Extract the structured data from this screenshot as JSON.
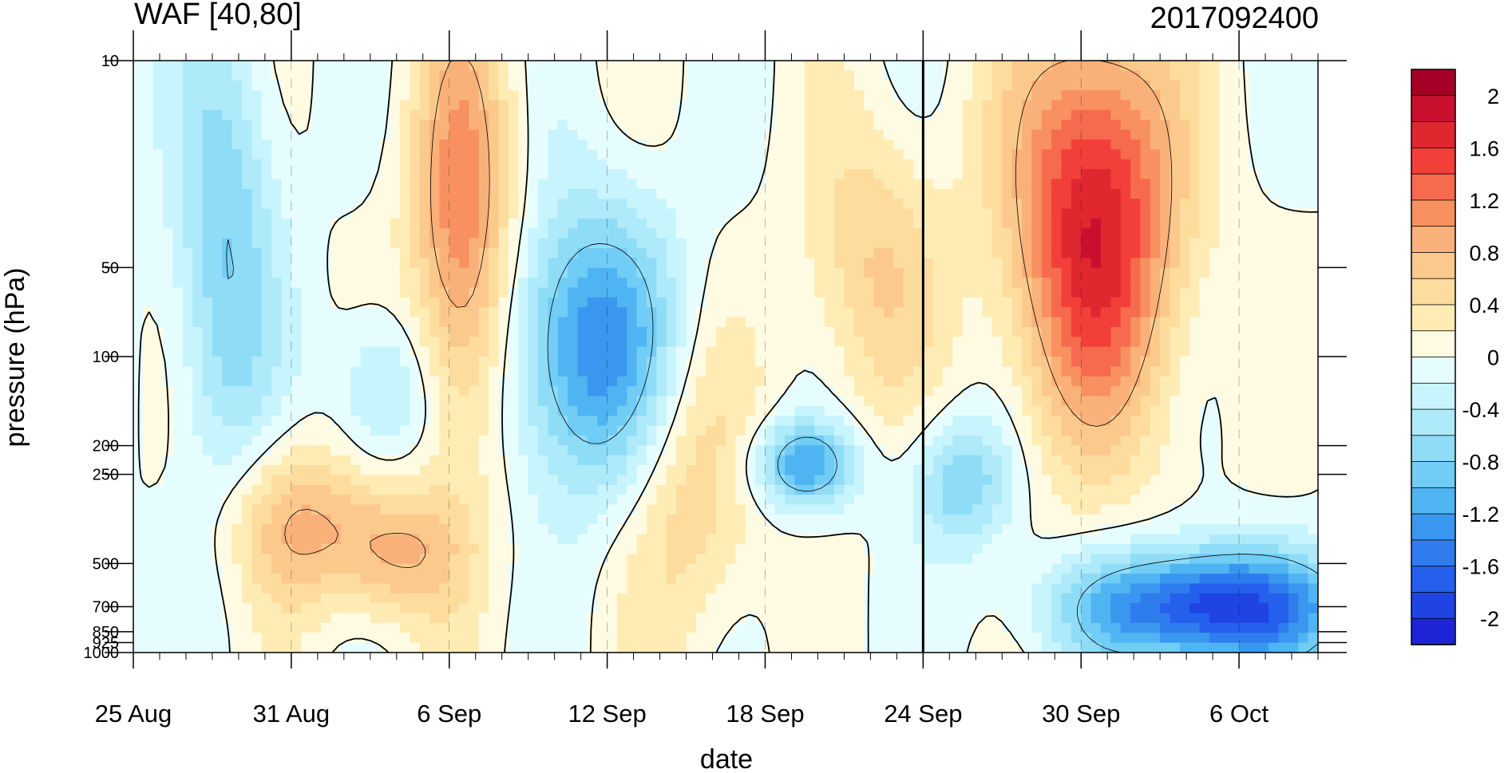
{
  "chart_data": {
    "type": "heatmap",
    "title": "WAF [40,80]",
    "subtitle": "2017092400",
    "xlabel": "date",
    "ylabel": "pressure (hPa)",
    "x_ticks": [
      "25 Aug",
      "31 Aug",
      "6 Sep",
      "12 Sep",
      "18 Sep",
      "24 Sep",
      "30 Sep",
      "6 Oct"
    ],
    "x_range": [
      "25 Aug",
      "9 Oct"
    ],
    "y_scale": "log",
    "y_reversed": true,
    "y_ticks": [
      "10",
      "50",
      "100",
      "200",
      "250",
      "500",
      "700",
      "850",
      "925",
      "1000"
    ],
    "y_range": [
      10,
      1000
    ],
    "colorbar": {
      "labels": [
        "2",
        "1.6",
        "1.2",
        "0.8",
        "0.4",
        "0",
        "-0.4",
        "-0.8",
        "-1.2",
        "-1.6",
        "-2"
      ],
      "levels_top_to_bottom": [
        2.2,
        2.0,
        1.8,
        1.6,
        1.4,
        1.2,
        1.0,
        0.8,
        0.6,
        0.4,
        0.2,
        0,
        -0.2,
        -0.4,
        -0.6,
        -0.8,
        -1.0,
        -1.2,
        -1.4,
        -1.6,
        -1.8,
        -2.0,
        -2.2
      ],
      "colors_top_to_bottom": [
        "#a50026",
        "#c8102e",
        "#e0272f",
        "#f23f3a",
        "#f66a4d",
        "#f8915f",
        "#fab179",
        "#fcc98d",
        "#fddc9e",
        "#feecb4",
        "#fffbe2",
        "#e6fdff",
        "#c8f4fd",
        "#aeeafa",
        "#8fdcf7",
        "#71cdf5",
        "#4fb4f2",
        "#3a97ef",
        "#2f7cee",
        "#2560ec",
        "#1f44e2",
        "#1e24d6"
      ]
    },
    "vertical_marker": "24 Sep",
    "grid": "dashed vertical lines at date ticks",
    "field_features": [
      {
        "feature": "positive maximum",
        "dates": [
          "28 Sep",
          "3 Oct"
        ],
        "pressure_hPa": [
          10,
          120
        ],
        "value_max": 1.8
      },
      {
        "feature": "positive maximum",
        "dates": [
          "5 Sep",
          "8 Sep"
        ],
        "pressure_hPa": [
          10,
          150
        ],
        "value_max": 1.2
      },
      {
        "feature": "negative minimum",
        "dates": [
          "1 Oct",
          "9 Oct"
        ],
        "pressure_hPa": [
          500,
          1000
        ],
        "value_min": -2.0
      },
      {
        "feature": "negative minimum",
        "dates": [
          "9 Sep",
          "14 Sep"
        ],
        "pressure_hPa": [
          40,
          220
        ],
        "value_min": -1.4
      },
      {
        "feature": "negative minimum",
        "dates": [
          "18 Sep",
          "21 Sep"
        ],
        "pressure_hPa": [
          180,
          300
        ],
        "value_min": -1.2
      },
      {
        "feature": "positive maximum",
        "dates": [
          "29 Aug",
          "2 Sep"
        ],
        "pressure_hPa": [
          220,
          600
        ],
        "value_max": 0.8
      },
      {
        "feature": "positive maximum",
        "dates": [
          "2 Sep",
          "6 Sep"
        ],
        "pressure_hPa": [
          300,
          700
        ],
        "value_max": 0.8
      },
      {
        "feature": "positive maximum",
        "dates": [
          "13 Sep",
          "17 Sep"
        ],
        "pressure_hPa": [
          100,
          700
        ],
        "value_max": 0.6
      },
      {
        "feature": "positive maximum",
        "dates": [
          "20 Sep",
          "24 Sep"
        ],
        "pressure_hPa": [
          20,
          120
        ],
        "value_max": 0.6
      },
      {
        "feature": "negative minimum",
        "dates": [
          "27 Aug",
          "30 Aug"
        ],
        "pressure_hPa": [
          10,
          200
        ],
        "value_min": -0.8
      },
      {
        "feature": "negative minimum",
        "dates": [
          "2 Sep",
          "5 Sep"
        ],
        "pressure_hPa": [
          80,
          220
        ],
        "value_min": -0.6
      },
      {
        "feature": "negative minimum",
        "dates": [
          "24 Sep",
          "27 Sep"
        ],
        "pressure_hPa": [
          180,
          400
        ],
        "value_min": -0.8
      }
    ]
  }
}
